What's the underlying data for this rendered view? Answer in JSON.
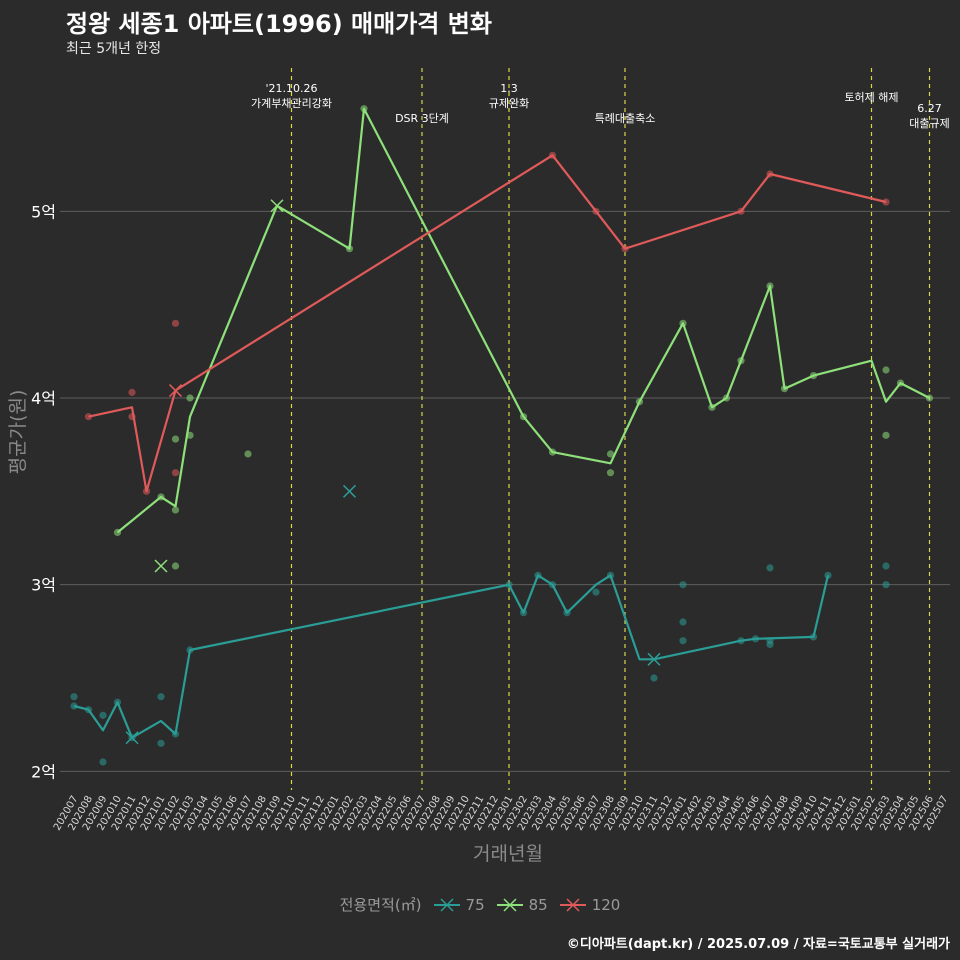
{
  "title": "정왕 세종1 아파트(1996) 매매가격 변화",
  "subtitle": "최근 5개년 한정",
  "credit": "©디아파트(dapt.kr) / 2025.07.09 / 자료=국토교통부 실거래가",
  "legend": {
    "title": "전용면적(㎡)",
    "items": [
      {
        "label": "75",
        "color": "#2a9d96"
      },
      {
        "label": "85",
        "color": "#8ee07a"
      },
      {
        "label": "120",
        "color": "#e05a5a"
      }
    ]
  },
  "chart_data": {
    "type": "line",
    "xlabel": "거래년월",
    "ylabel": "평균가(원)",
    "ylim": [
      1.9,
      5.8
    ],
    "y_ticks": [
      {
        "value": 2,
        "label": "2억"
      },
      {
        "value": 3,
        "label": "3억"
      },
      {
        "value": 4,
        "label": "4억"
      },
      {
        "value": 5,
        "label": "5억"
      }
    ],
    "grid": true,
    "legend_position": "bottom",
    "categories": [
      "202007",
      "202008",
      "202009",
      "202010",
      "202011",
      "202012",
      "202101",
      "202102",
      "202103",
      "202104",
      "202105",
      "202106",
      "202107",
      "202108",
      "202109",
      "202110",
      "202111",
      "202112",
      "202201",
      "202202",
      "202203",
      "202204",
      "202205",
      "202206",
      "202207",
      "202208",
      "202209",
      "202210",
      "202211",
      "202212",
      "202301",
      "202302",
      "202303",
      "202304",
      "202305",
      "202306",
      "202307",
      "202308",
      "202309",
      "202310",
      "202311",
      "202312",
      "202401",
      "202402",
      "202403",
      "202404",
      "202405",
      "202406",
      "202407",
      "202408",
      "202409",
      "202410",
      "202411",
      "202412",
      "202501",
      "202502",
      "202503",
      "202504",
      "202505",
      "202506",
      "202507"
    ],
    "events": [
      {
        "x": "202110",
        "label": "'21.10.26\n가계부채관리강화"
      },
      {
        "x": "202207",
        "label": "DSR 3단계"
      },
      {
        "x": "202301",
        "label": "1.3\n규제완화"
      },
      {
        "x": "202309",
        "label": "특례대출축소"
      },
      {
        "x": "202502",
        "label": "토허제 해제"
      },
      {
        "x": "202506",
        "label": "6.27\n대출규제"
      }
    ],
    "series": [
      {
        "name": "75",
        "color": "#2a9d96",
        "line": [
          [
            "202007",
            2.35
          ],
          [
            "202008",
            2.33
          ],
          [
            "202009",
            2.22
          ],
          [
            "202010",
            2.37
          ],
          [
            "202011",
            2.18
          ],
          [
            "202101",
            2.27
          ],
          [
            "202102",
            2.2
          ],
          [
            "202103",
            2.65
          ],
          [
            "202301",
            3.0
          ],
          [
            "202302",
            2.85
          ],
          [
            "202303",
            3.05
          ],
          [
            "202304",
            3.0
          ],
          [
            "202305",
            2.85
          ],
          [
            "202307",
            3.0
          ],
          [
            "202308",
            3.05
          ],
          [
            "202310",
            2.6
          ],
          [
            "202311",
            2.6
          ],
          [
            "202405",
            2.7
          ],
          [
            "202406",
            2.71
          ],
          [
            "202410",
            2.72
          ],
          [
            "202411",
            3.05
          ]
        ],
        "points": [
          [
            "202007",
            2.4
          ],
          [
            "202007",
            2.35
          ],
          [
            "202008",
            2.33
          ],
          [
            "202009",
            2.3
          ],
          [
            "202009",
            2.05
          ],
          [
            "202010",
            2.37
          ],
          [
            "202011",
            2.18
          ],
          [
            "202101",
            2.15
          ],
          [
            "202101",
            2.4
          ],
          [
            "202102",
            2.2
          ],
          [
            "202103",
            2.65
          ],
          [
            "202301",
            3.0
          ],
          [
            "202302",
            2.85
          ],
          [
            "202303",
            3.05
          ],
          [
            "202304",
            3.0
          ],
          [
            "202305",
            2.85
          ],
          [
            "202307",
            2.96
          ],
          [
            "202308",
            3.05
          ],
          [
            "202311",
            2.5
          ],
          [
            "202401",
            2.7
          ],
          [
            "202401",
            2.8
          ],
          [
            "202401",
            3.0
          ],
          [
            "202405",
            2.7
          ],
          [
            "202406",
            2.71
          ],
          [
            "202407",
            3.09
          ],
          [
            "202407",
            2.7
          ],
          [
            "202407",
            2.68
          ],
          [
            "202410",
            2.72
          ],
          [
            "202411",
            3.05
          ],
          [
            "202503",
            3.0
          ],
          [
            "202503",
            3.1
          ]
        ],
        "cross": [
          [
            "202011",
            2.18
          ],
          [
            "202311",
            2.6
          ],
          [
            "202202",
            3.5
          ]
        ]
      },
      {
        "name": "85",
        "color": "#8ee07a",
        "line": [
          [
            "202010",
            3.28
          ],
          [
            "202101",
            3.47
          ],
          [
            "202102",
            3.42
          ],
          [
            "202103",
            3.9
          ],
          [
            "202109",
            5.03
          ],
          [
            "202202",
            4.8
          ],
          [
            "202203",
            5.55
          ],
          [
            "202302",
            3.9
          ],
          [
            "202304",
            3.71
          ],
          [
            "202308",
            3.65
          ],
          [
            "202310",
            3.98
          ],
          [
            "202401",
            4.4
          ],
          [
            "202403",
            3.95
          ],
          [
            "202404",
            4.0
          ],
          [
            "202405",
            4.2
          ],
          [
            "202407",
            4.6
          ],
          [
            "202408",
            4.05
          ],
          [
            "202410",
            4.12
          ],
          [
            "202502",
            4.2
          ],
          [
            "202503",
            3.98
          ],
          [
            "202504",
            4.08
          ],
          [
            "202506",
            4.0
          ]
        ],
        "points": [
          [
            "202010",
            3.28
          ],
          [
            "202101",
            3.47
          ],
          [
            "202102",
            3.4
          ],
          [
            "202102",
            3.78
          ],
          [
            "202102",
            3.1
          ],
          [
            "202103",
            3.8
          ],
          [
            "202103",
            4.0
          ],
          [
            "202107",
            3.7
          ],
          [
            "202202",
            4.8
          ],
          [
            "202203",
            5.55
          ],
          [
            "202302",
            3.9
          ],
          [
            "202304",
            3.71
          ],
          [
            "202308",
            3.6
          ],
          [
            "202308",
            3.7
          ],
          [
            "202310",
            3.98
          ],
          [
            "202401",
            4.4
          ],
          [
            "202403",
            3.95
          ],
          [
            "202404",
            4.0
          ],
          [
            "202405",
            4.2
          ],
          [
            "202407",
            4.6
          ],
          [
            "202408",
            4.05
          ],
          [
            "202410",
            4.12
          ],
          [
            "202503",
            4.15
          ],
          [
            "202503",
            3.8
          ],
          [
            "202504",
            4.08
          ],
          [
            "202506",
            4.0
          ]
        ],
        "cross": [
          [
            "202101",
            3.1
          ],
          [
            "202109",
            5.03
          ]
        ]
      },
      {
        "name": "120",
        "color": "#e05a5a",
        "line": [
          [
            "202008",
            3.9
          ],
          [
            "202011",
            3.95
          ],
          [
            "202012",
            3.5
          ],
          [
            "202102",
            4.04
          ],
          [
            "202304",
            5.3
          ],
          [
            "202307",
            5.0
          ],
          [
            "202309",
            4.8
          ],
          [
            "202405",
            5.0
          ],
          [
            "202407",
            5.2
          ],
          [
            "202503",
            5.05
          ]
        ],
        "points": [
          [
            "202008",
            3.9
          ],
          [
            "202011",
            3.9
          ],
          [
            "202011",
            4.03
          ],
          [
            "202012",
            3.5
          ],
          [
            "202102",
            4.4
          ],
          [
            "202102",
            3.6
          ],
          [
            "202304",
            5.3
          ],
          [
            "202307",
            5.0
          ],
          [
            "202309",
            4.8
          ],
          [
            "202405",
            5.0
          ],
          [
            "202407",
            5.2
          ],
          [
            "202503",
            5.05
          ]
        ],
        "cross": [
          [
            "202102",
            4.04
          ]
        ]
      }
    ]
  }
}
